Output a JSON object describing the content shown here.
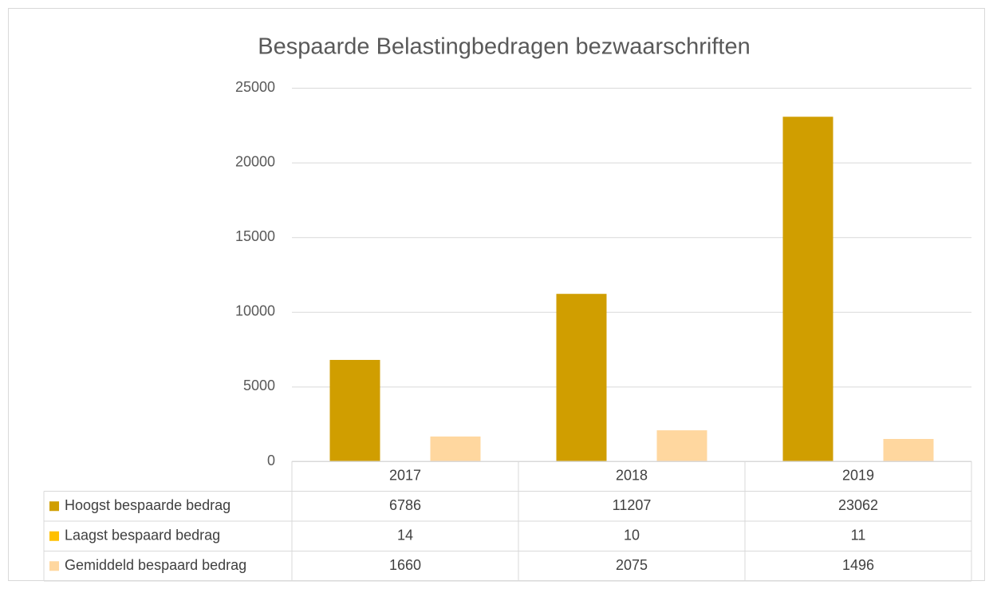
{
  "chart_data": {
    "type": "bar",
    "title": "Bespaarde Belastingbedragen bezwaarschriften",
    "categories": [
      "2017",
      "2018",
      "2019"
    ],
    "series": [
      {
        "name": "Hoogst bespaarde bedrag",
        "color": "#d09e00",
        "values": [
          6786,
          11207,
          23062
        ]
      },
      {
        "name": "Laagst bespaard bedrag",
        "color": "#ffc000",
        "values": [
          14,
          10,
          11
        ]
      },
      {
        "name": "Gemiddeld bespaard bedrag",
        "color": "#ffd79f",
        "values": [
          1660,
          2075,
          1496
        ]
      }
    ],
    "ylim": [
      0,
      25000
    ],
    "yticks": [
      0,
      5000,
      10000,
      15000,
      20000,
      25000
    ],
    "grid": true,
    "data_table": true
  }
}
